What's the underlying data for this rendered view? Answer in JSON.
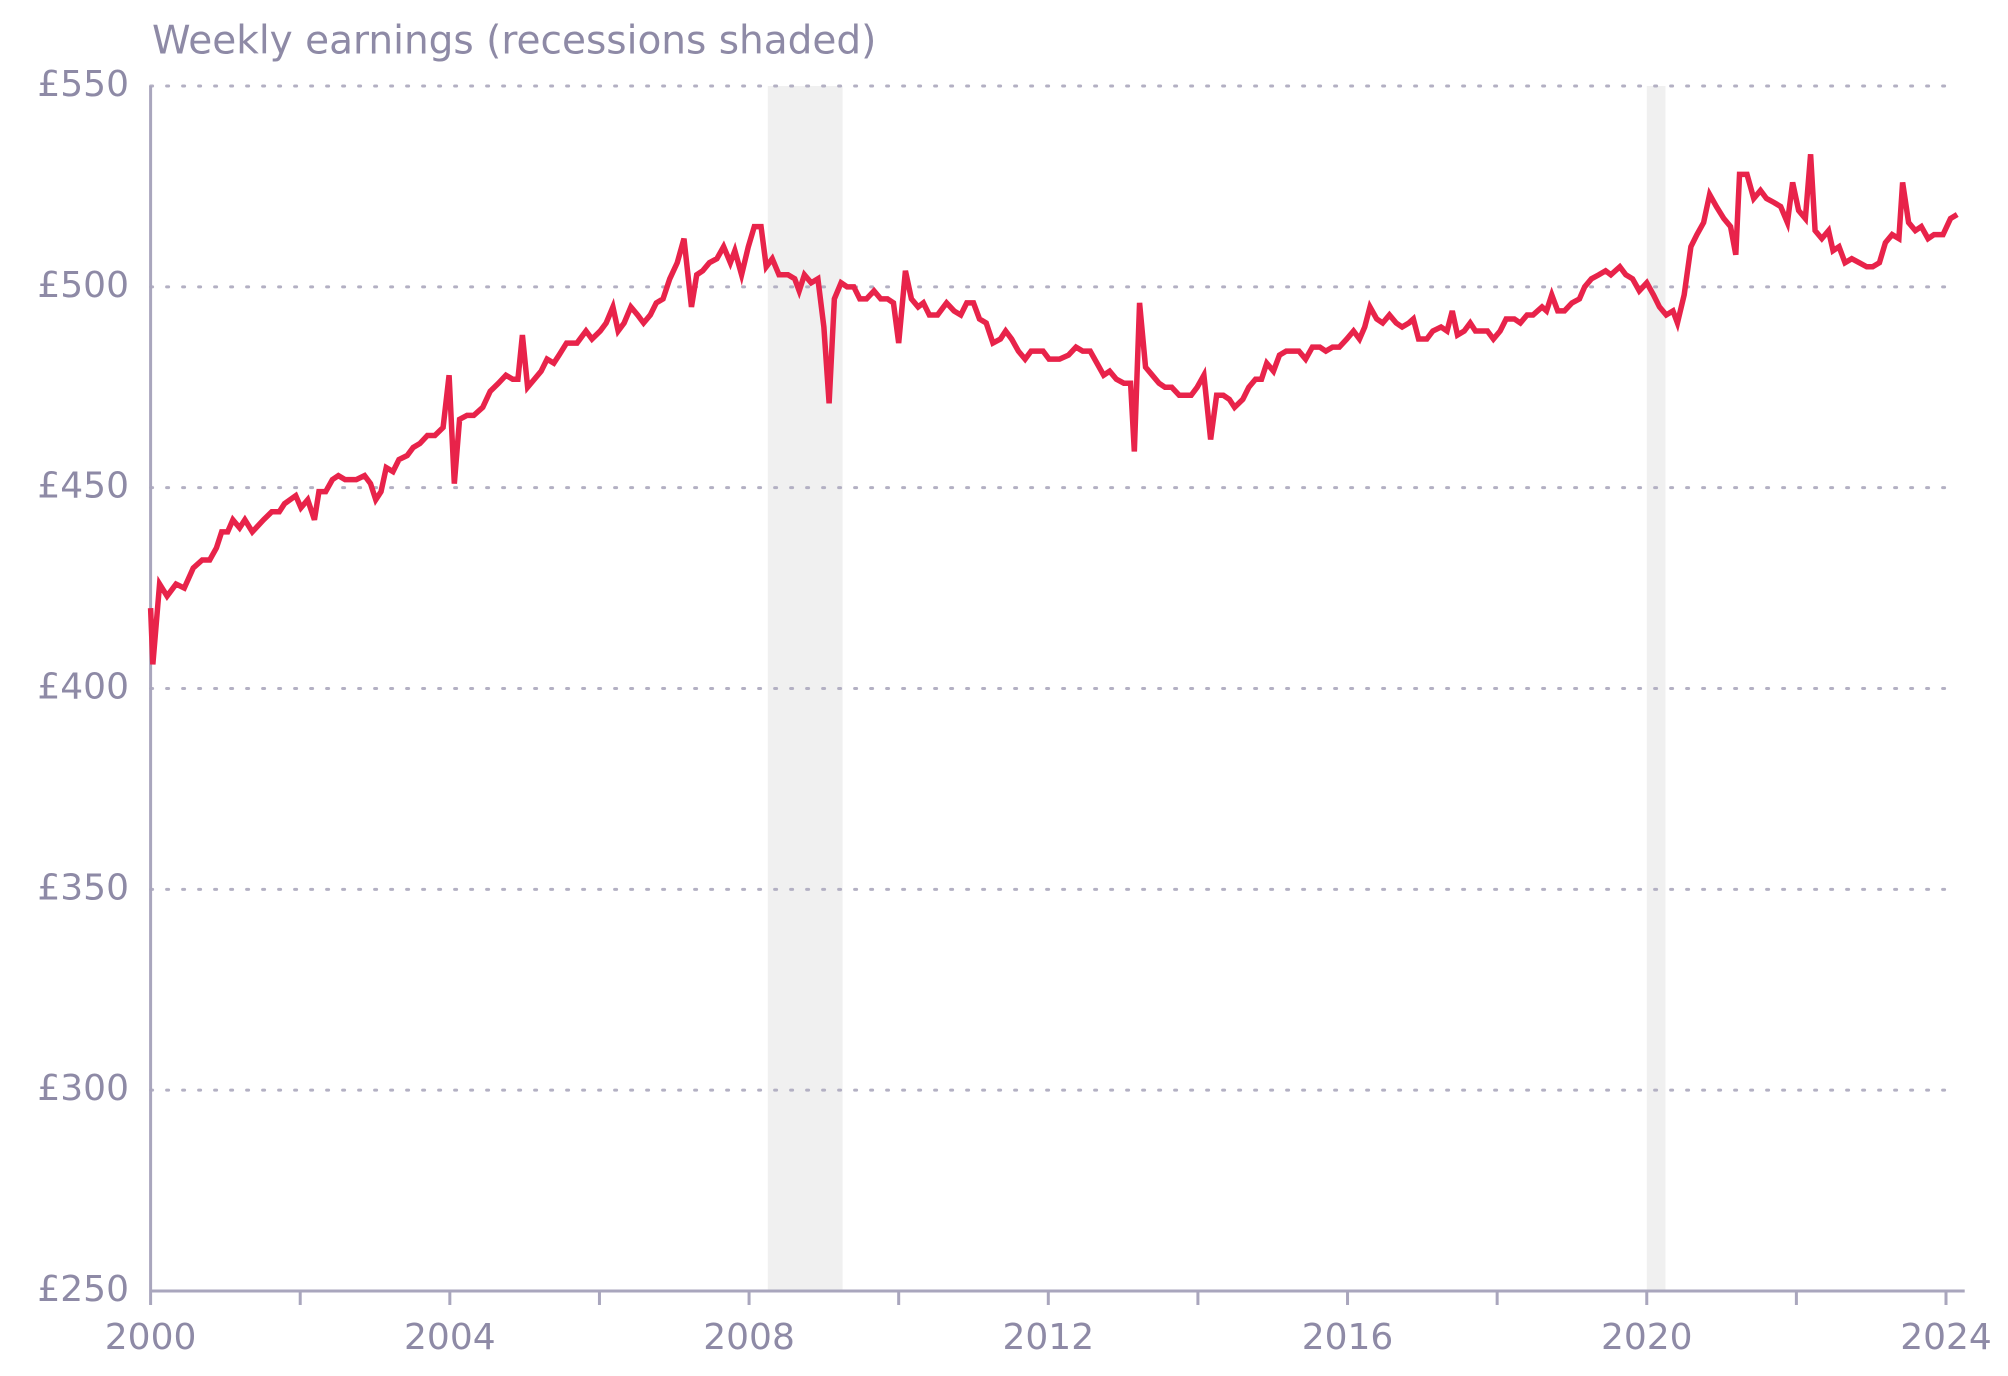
{
  "chart_data": {
    "type": "line",
    "title": "Weekly earnings (recessions shaded)",
    "color": "#e8234a",
    "recession_color": "#f0f0f0",
    "grid": true,
    "xlim": [
      2000,
      2024.25
    ],
    "ylim": [
      250,
      550
    ],
    "xticks": [
      2000,
      2004,
      2008,
      2012,
      2016,
      2020,
      2024
    ],
    "yticks": [
      {
        "value": 250,
        "label": "£250"
      },
      {
        "value": 300,
        "label": "£300"
      },
      {
        "value": 350,
        "label": "£350"
      },
      {
        "value": 400,
        "label": "£400"
      },
      {
        "value": 450,
        "label": "£450"
      },
      {
        "value": 500,
        "label": "£500"
      },
      {
        "value": 550,
        "label": "£550"
      }
    ],
    "recessions": [
      [
        2008.25,
        2009.25
      ],
      [
        2020.0,
        2020.25
      ]
    ],
    "x": [
      2000.0,
      2000.03,
      2000.12,
      2000.22,
      2000.34,
      2000.45,
      2000.57,
      2000.69,
      2000.79,
      2000.88,
      2000.95,
      2001.03,
      2001.1,
      2001.19,
      2001.26,
      2001.36,
      2001.51,
      2001.62,
      2001.72,
      2001.79,
      2001.94,
      2002.01,
      2002.1,
      2002.19,
      2002.25,
      2002.34,
      2002.43,
      2002.51,
      2002.6,
      2002.75,
      2002.86,
      2002.94,
      2003.01,
      2003.08,
      2003.15,
      2003.24,
      2003.32,
      2003.43,
      2003.51,
      2003.6,
      2003.7,
      2003.8,
      2003.91,
      2003.99,
      2004.06,
      2004.13,
      2004.23,
      2004.32,
      2004.44,
      2004.54,
      2004.65,
      2004.75,
      2004.84,
      2004.91,
      2004.97,
      2005.04,
      2005.13,
      2005.22,
      2005.3,
      2005.39,
      2005.46,
      2005.56,
      2005.7,
      2005.82,
      2005.9,
      2006.01,
      2006.09,
      2006.18,
      2006.25,
      2006.33,
      2006.42,
      2006.51,
      2006.59,
      2006.68,
      2006.76,
      2006.85,
      2006.94,
      2007.04,
      2007.13,
      2007.23,
      2007.3,
      2007.38,
      2007.47,
      2007.57,
      2007.66,
      2007.75,
      2007.81,
      2007.9,
      2007.99,
      2008.07,
      2008.16,
      2008.23,
      2008.31,
      2008.4,
      2008.52,
      2008.61,
      2008.67,
      2008.74,
      2008.83,
      2008.92,
      2009.0,
      2009.07,
      2009.14,
      2009.23,
      2009.31,
      2009.4,
      2009.48,
      2009.57,
      2009.67,
      2009.76,
      2009.85,
      2009.93,
      2010.0,
      2010.09,
      2010.17,
      2010.26,
      2010.33,
      2010.41,
      2010.52,
      2010.64,
      2010.74,
      2010.83,
      2010.91,
      2011.0,
      2011.08,
      2011.17,
      2011.26,
      2011.36,
      2011.43,
      2011.51,
      2011.6,
      2011.69,
      2011.77,
      2011.93,
      2012.01,
      2012.15,
      2012.27,
      2012.37,
      2012.46,
      2012.56,
      2012.65,
      2012.74,
      2012.82,
      2012.91,
      2013.01,
      2013.1,
      2013.15,
      2013.22,
      2013.3,
      2013.39,
      2013.48,
      2013.56,
      2013.65,
      2013.75,
      2013.91,
      2013.99,
      2014.08,
      2014.17,
      2014.25,
      2014.34,
      2014.42,
      2014.49,
      2014.6,
      2014.68,
      2014.77,
      2014.85,
      2014.92,
      2015.01,
      2015.09,
      2015.18,
      2015.35,
      2015.44,
      2015.53,
      2015.63,
      2015.71,
      2015.8,
      2015.89,
      2015.99,
      2016.08,
      2016.16,
      2016.23,
      2016.3,
      2016.39,
      2016.47,
      2016.56,
      2016.65,
      2016.73,
      2016.82,
      2016.88,
      2016.95,
      2017.06,
      2017.14,
      2017.25,
      2017.33,
      2017.4,
      2017.47,
      2017.56,
      2017.64,
      2017.71,
      2017.87,
      2017.95,
      2018.04,
      2018.12,
      2018.23,
      2018.31,
      2018.4,
      2018.48,
      2018.6,
      2018.66,
      2018.73,
      2018.81,
      2018.9,
      2019.0,
      2019.1,
      2019.17,
      2019.26,
      2019.36,
      2019.45,
      2019.52,
      2019.64,
      2019.72,
      2019.81,
      2019.9,
      2020.0,
      2020.09,
      2020.17,
      2020.26,
      2020.35,
      2020.41,
      2020.5,
      2020.59,
      2020.67,
      2020.76,
      2020.84,
      2020.93,
      2021.03,
      2021.12,
      2021.19,
      2021.24,
      2021.34,
      2021.43,
      2021.52,
      2021.6,
      2021.7,
      2021.79,
      2021.88,
      2021.95,
      2022.03,
      2022.12,
      2022.19,
      2022.25,
      2022.34,
      2022.43,
      2022.49,
      2022.57,
      2022.65,
      2022.74,
      2022.84,
      2022.94,
      2023.02,
      2023.11,
      2023.19,
      2023.28,
      2023.37,
      2023.42,
      2023.5,
      2023.59,
      2023.67,
      2023.76,
      2023.84,
      2023.96,
      2024.06,
      2024.15
    ],
    "values": [
      420,
      406,
      426,
      423,
      426,
      425,
      430,
      432,
      432,
      435,
      439,
      439,
      442,
      440,
      442,
      439,
      442,
      444,
      444,
      446,
      448,
      445,
      447,
      442,
      449,
      449,
      452,
      453,
      452,
      452,
      453,
      451,
      447,
      449,
      455,
      454,
      457,
      458,
      460,
      461,
      463,
      463,
      465,
      478,
      451,
      467,
      468,
      468,
      470,
      474,
      476,
      478,
      477,
      477,
      488,
      475,
      477,
      479,
      482,
      481,
      483,
      486,
      486,
      489,
      487,
      489,
      491,
      495,
      489,
      491,
      495,
      493,
      491,
      493,
      496,
      497,
      502,
      506,
      512,
      495,
      503,
      504,
      506,
      507,
      510,
      506,
      509,
      503,
      510,
      515,
      515,
      505,
      507,
      503,
      503,
      502,
      499,
      503,
      501,
      502,
      490,
      471,
      497,
      501,
      500,
      500,
      497,
      497,
      499,
      497,
      497,
      496,
      486,
      504,
      497,
      495,
      496,
      493,
      493,
      496,
      494,
      493,
      496,
      496,
      492,
      491,
      486,
      487,
      489,
      487,
      484,
      482,
      484,
      484,
      482,
      482,
      483,
      485,
      484,
      484,
      481,
      478,
      479,
      477,
      476,
      476,
      459,
      496,
      480,
      478,
      476,
      475,
      475,
      473,
      473,
      475,
      478,
      462,
      473,
      473,
      472,
      470,
      472,
      475,
      477,
      477,
      481,
      479,
      483,
      484,
      484,
      482,
      485,
      485,
      484,
      485,
      485,
      487,
      489,
      487,
      490,
      495,
      492,
      491,
      493,
      491,
      490,
      491,
      492,
      487,
      487,
      489,
      490,
      489,
      494,
      488,
      489,
      491,
      489,
      489,
      487,
      489,
      492,
      492,
      491,
      493,
      493,
      495,
      494,
      498,
      494,
      494,
      496,
      497,
      500,
      502,
      503,
      504,
      503,
      505,
      503,
      502,
      499,
      501,
      498,
      495,
      493,
      494,
      491,
      498,
      510,
      513,
      516,
      523,
      520,
      517,
      515,
      508,
      528,
      528,
      522,
      524,
      522,
      521,
      520,
      516,
      526,
      519,
      517,
      533,
      514,
      512,
      514,
      509,
      510,
      506,
      507,
      506,
      505,
      505,
      506,
      511,
      513,
      512,
      526,
      516,
      514,
      515,
      512,
      513,
      513,
      517,
      518
    ]
  }
}
